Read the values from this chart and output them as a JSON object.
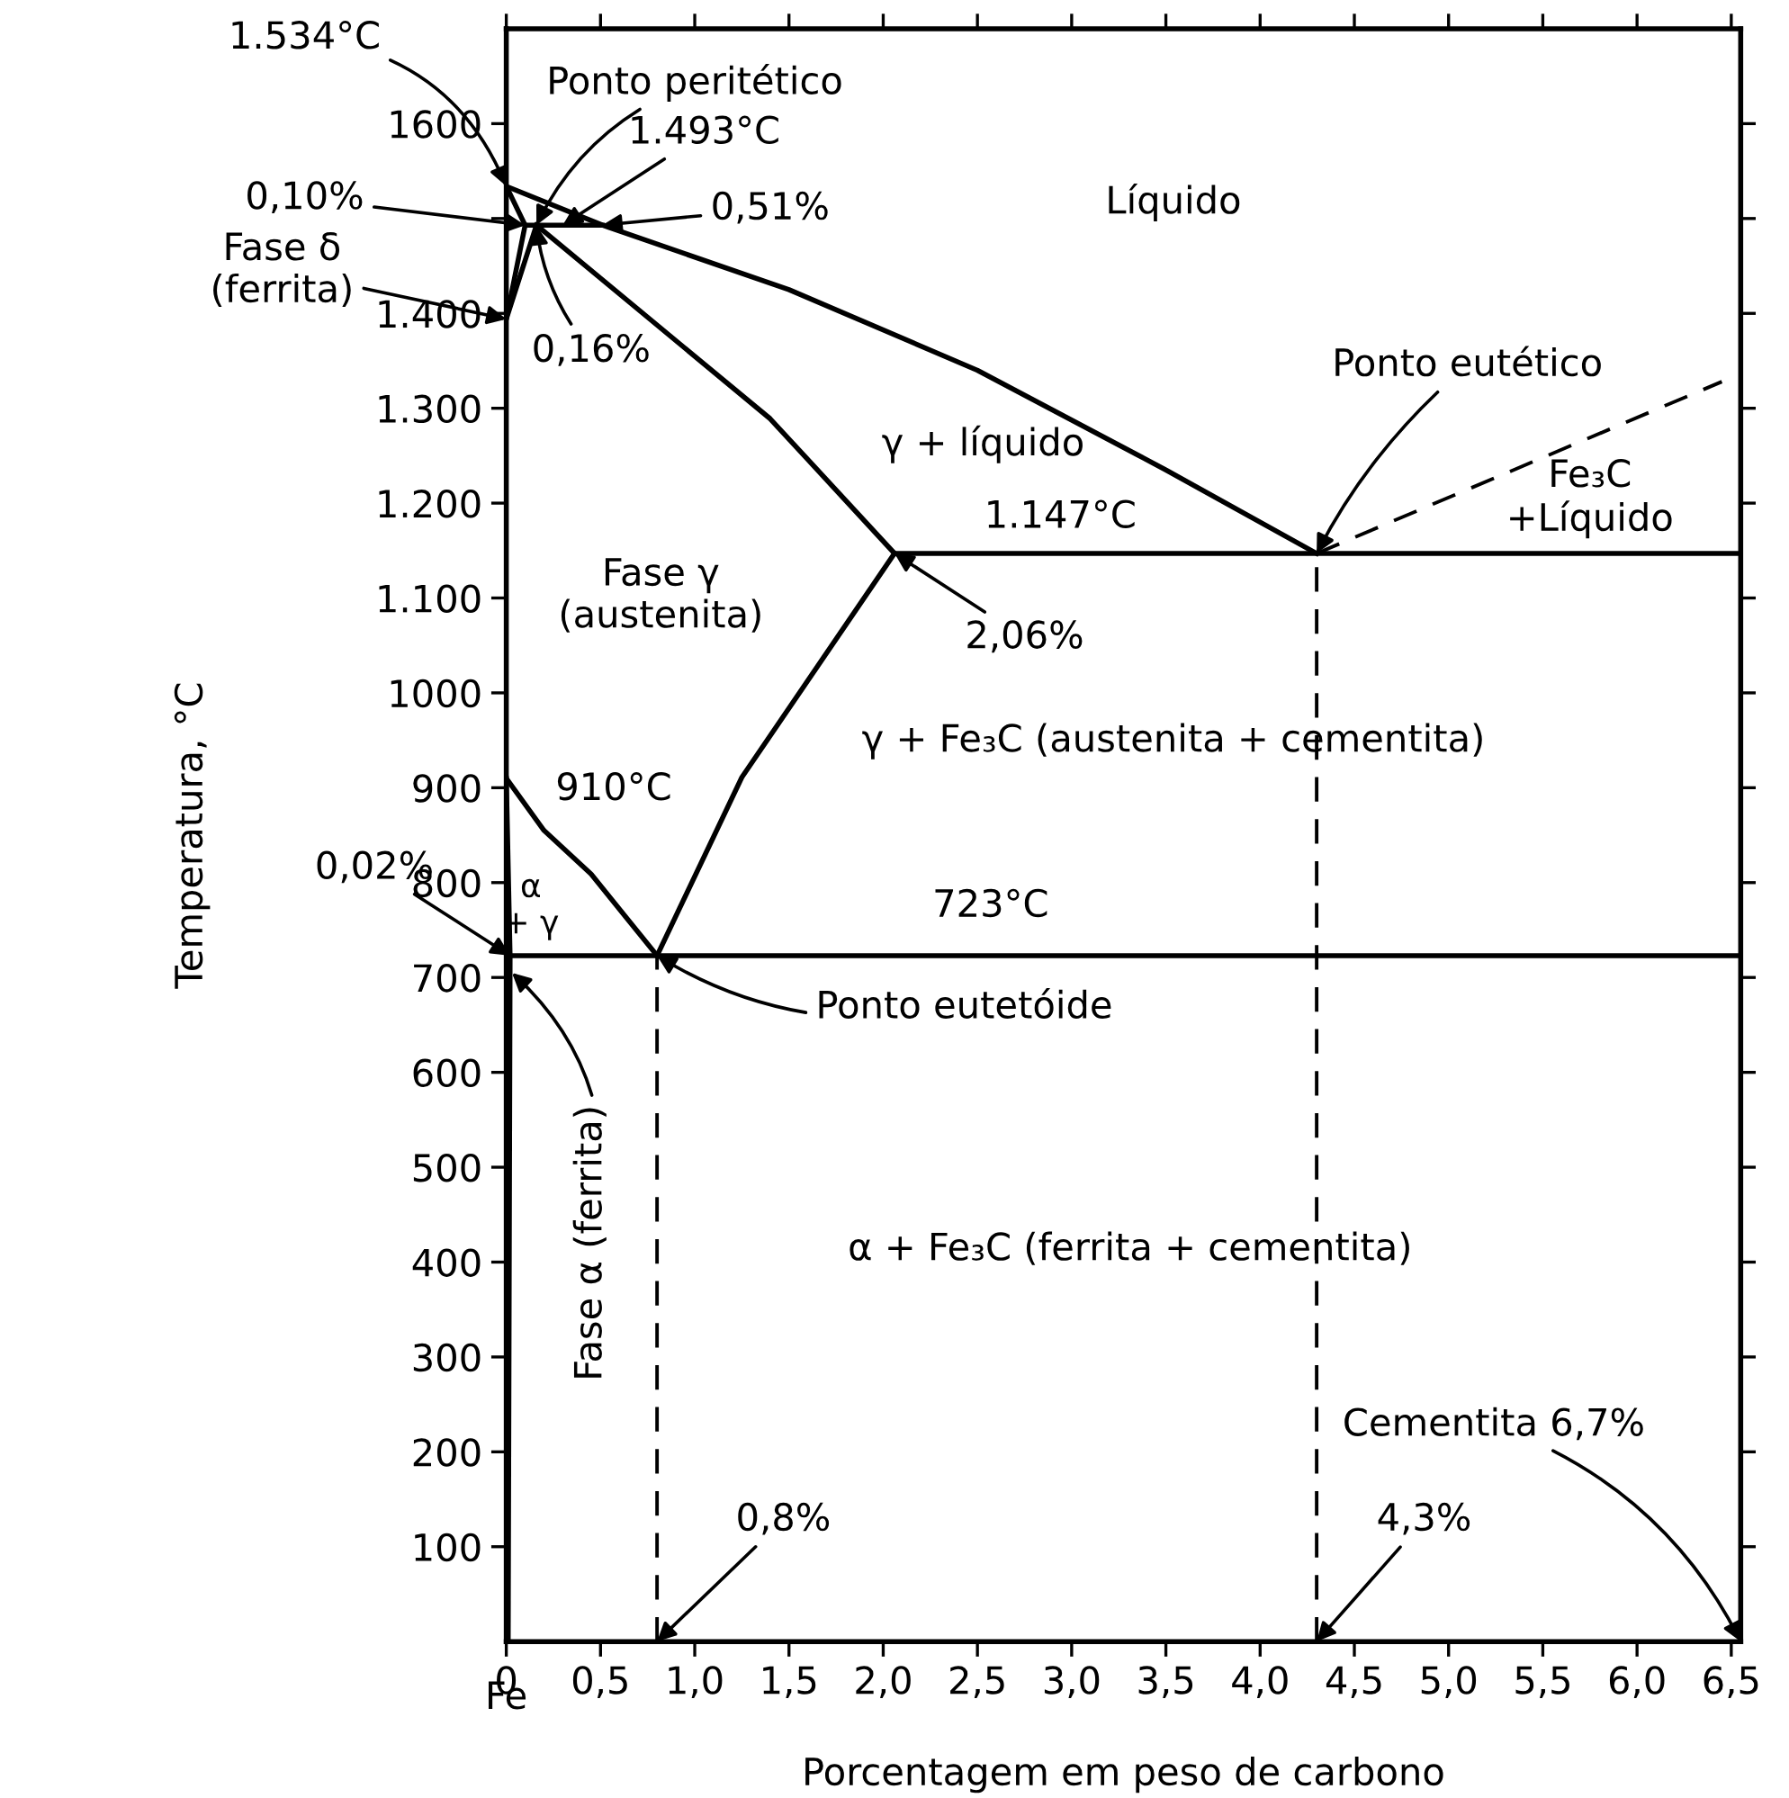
{
  "chart_data": {
    "type": "line",
    "xlabel": "Porcentagem em peso de carbono",
    "ylabel": "Temperatura, °C",
    "xlim": [
      0,
      6.55
    ],
    "ylim": [
      0,
      1700
    ],
    "xticks": [
      0,
      {
        "value": 0.5,
        "label": "0,5"
      },
      {
        "value": 1.0,
        "label": "1,0"
      },
      {
        "value": 1.5,
        "label": "1,5"
      },
      {
        "value": 2.0,
        "label": "2,0"
      },
      {
        "value": 2.5,
        "label": "2,5"
      },
      {
        "value": 3.0,
        "label": "3,0"
      },
      {
        "value": 3.5,
        "label": "3,5"
      },
      {
        "value": 4.0,
        "label": "4,0"
      },
      {
        "value": 4.5,
        "label": "4,5"
      },
      {
        "value": 5.0,
        "label": "5,0"
      },
      {
        "value": 5.5,
        "label": "5,5"
      },
      {
        "value": 6.0,
        "label": "6,0"
      },
      {
        "value": 6.5,
        "label": "6,5"
      }
    ],
    "yticks": [
      100,
      200,
      300,
      400,
      500,
      600,
      700,
      800,
      900,
      1000,
      {
        "value": 1100,
        "label": "1.100"
      },
      {
        "value": 1200,
        "label": "1.200"
      },
      {
        "value": 1300,
        "label": "1.300"
      },
      {
        "value": 1400,
        "label": "1.400"
      },
      {
        "value": 1500,
        "label": null
      },
      1600
    ],
    "grid": false,
    "series": [
      {
        "color": "#000000",
        "line_style": "solid",
        "x": [
          0,
          0.51,
          1.5,
          2.5,
          3.5,
          4.3
        ],
        "values": [
          1534,
          1493,
          1425,
          1340,
          1235,
          1147
        ]
      },
      {
        "color": "#000000",
        "line_style": "solid",
        "x": [
          0.16,
          1.4,
          2.06
        ],
        "values": [
          1493,
          1289,
          1147
        ]
      },
      {
        "color": "#000000",
        "line_style": "solid",
        "x": [
          0.8,
          1.25,
          2.06
        ],
        "values": [
          723,
          911,
          1147
        ]
      },
      {
        "color": "#000000",
        "line_style": "solid",
        "x": [
          0,
          0.2,
          0.45,
          0.8
        ],
        "values": [
          910,
          855,
          809,
          723
        ]
      },
      {
        "color": "#000000",
        "line_style": "dashed",
        "x": [
          4.3,
          6.45
        ],
        "values": [
          1147,
          1328
        ]
      },
      {
        "color": "#000000",
        "line_style": "solid",
        "x": [
          2.06,
          6.55
        ],
        "values": [
          1147,
          1147
        ]
      },
      {
        "color": "#000000",
        "line_style": "solid",
        "x": [
          0.02,
          6.55
        ],
        "values": [
          723,
          723
        ]
      },
      {
        "color": "#000000",
        "line_style": "dashed",
        "x": [
          0.8,
          0.8
        ],
        "values": [
          0,
          723
        ]
      },
      {
        "color": "#000000",
        "line_style": "dashed",
        "x": [
          4.3,
          4.3
        ],
        "values": [
          0,
          1147
        ]
      },
      {
        "color": "#000000",
        "line_style": "solid",
        "x": [
          0,
          0.02,
          0.01
        ],
        "values": [
          910,
          723,
          0
        ]
      },
      {
        "color": "#000000",
        "line_style": "solid",
        "x": [
          0,
          0.1,
          0.51
        ],
        "values": [
          1534,
          1493,
          1493
        ]
      },
      {
        "color": "#000000",
        "line_style": "solid",
        "x": [
          0.1,
          0
        ],
        "values": [
          1493,
          1394
        ]
      },
      {
        "color": "#000000",
        "line_style": "solid",
        "x": [
          0.16,
          0
        ],
        "values": [
          1493,
          1394
        ]
      }
    ],
    "annotations": [
      {
        "text": "1.534°C",
        "x": 0,
        "y": 1534
      },
      {
        "text": "Ponto peritético",
        "x": 0.16,
        "y": 1493
      },
      {
        "text": "1.493°C",
        "x": 0.3,
        "y": 1493
      },
      {
        "text": "0,51%",
        "x": 0.51,
        "y": 1493
      },
      {
        "text": "0,10%",
        "x": 0.1,
        "y": 1493
      },
      {
        "text": "Fase δ\n(ferrita)",
        "x": 0,
        "y": 1394
      },
      {
        "text": "0,16%",
        "x": 0.16,
        "y": 1493
      },
      {
        "text": "Ponto eutético",
        "x": 4.3,
        "y": 1147
      },
      {
        "text": "2,06%",
        "x": 2.06,
        "y": 1147
      },
      {
        "text": "0,02%",
        "x": 0.02,
        "y": 723
      },
      {
        "text": "Fase α (ferrita)",
        "x": 0.03,
        "y": 705
      },
      {
        "text": "Ponto eutetóide",
        "x": 0.8,
        "y": 723
      },
      {
        "text": "0,8%",
        "x": 0.8,
        "y": 0
      },
      {
        "text": "4,3%",
        "x": 4.3,
        "y": 0
      },
      "Cementita 6,7%",
      "Líquido",
      "γ + líquido",
      "1.147°C",
      "Fe₃C\n+Líquido",
      "Fase γ\n(austenita)",
      "γ + Fe₃C (austenita + cementita)",
      "910°C",
      "α\n+ γ",
      "723°C",
      "α + Fe₃C (ferrita + cementita)",
      "Fe"
    ]
  }
}
